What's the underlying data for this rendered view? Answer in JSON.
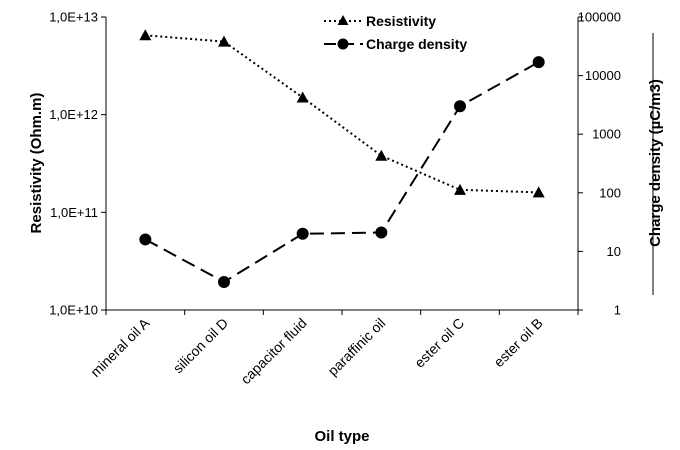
{
  "chart_data": {
    "type": "line",
    "xlabel": "Oil type",
    "categories": [
      "mineral oil A",
      "silicon oil D",
      "capacitor fluid",
      "paraffinic oil",
      "ester oil C",
      "ester oil B"
    ],
    "left_axis": {
      "label": "Resistivity (Ohm.m)",
      "scale": "log",
      "ylim": [
        10000000000.0,
        10000000000000.0
      ],
      "ticks": [
        "1,0E+10",
        "1,0E+11",
        "1,0E+12",
        "1,0E+13"
      ]
    },
    "right_axis": {
      "label": "Charge density (µC/m3)",
      "scale": "log",
      "ylim": [
        1,
        100000
      ],
      "ticks": [
        "1",
        "10",
        "100",
        "1000",
        "10000",
        "100000"
      ]
    },
    "series": [
      {
        "name": "Resistivity",
        "axis": "left",
        "marker": "triangle",
        "line_style": "dotted",
        "values": [
          6500000000000.0,
          5600000000000.0,
          1500000000000.0,
          380000000000.0,
          170000000000.0,
          160000000000.0
        ]
      },
      {
        "name": "Charge density",
        "axis": "right",
        "marker": "circle",
        "line_style": "dashed",
        "values": [
          16,
          3,
          20,
          21,
          3000,
          17000
        ]
      }
    ],
    "legend_position": "top-center",
    "grid": false
  }
}
